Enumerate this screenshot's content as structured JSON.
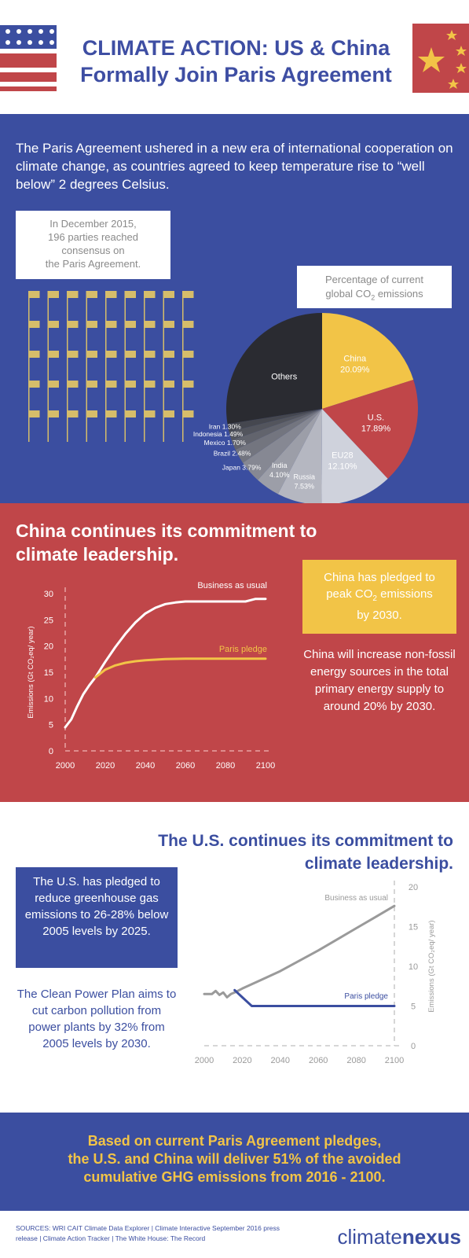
{
  "header": {
    "title_line1": "CLIMATE ACTION: US & China",
    "title_line2": "Formally Join Paris Agreement",
    "colors": {
      "blue": "#3e4ea3",
      "red": "#c04649",
      "yellow": "#f2c447"
    }
  },
  "intro": {
    "text": "The Paris Agreement ushered in a new era of international cooperation on climate change, as countries agreed to keep temperature rise to “well below” 2 degrees Celsius."
  },
  "parties": {
    "line1": "In December 2015,",
    "line2": "196 parties reached",
    "line3": "consensus on",
    "line4": "the Paris Agreement."
  },
  "chart_data": [
    {
      "type": "pie",
      "title_line1": "Percentage of current",
      "title_line2_prefix": "global CO",
      "title_line2_sub": "2",
      "title_line2_suffix": " emissions",
      "slices": [
        {
          "label": "China",
          "value": 20.09,
          "display": "China\n20.09%",
          "color": "#f2c447"
        },
        {
          "label": "U.S.",
          "value": 17.89,
          "display": "U.S.\n17.89%",
          "color": "#c04649"
        },
        {
          "label": "EU28",
          "value": 12.1,
          "display": "EU28\n12.10%",
          "color": "#cfd2dc"
        },
        {
          "label": "Russia",
          "value": 7.53,
          "display": "Russia\n7.53%",
          "color": "#b5b7c1"
        },
        {
          "label": "India",
          "value": 4.1,
          "display": "India\n4.10%",
          "color": "#9c9ea8"
        },
        {
          "label": "Japan",
          "value": 3.79,
          "display": "Japan 3.79%",
          "color": "#868893"
        },
        {
          "label": "Brazil",
          "value": 2.48,
          "display": "Brazil 2.48%",
          "color": "#73757f"
        },
        {
          "label": "Mexico",
          "value": 1.7,
          "display": "Mexico 1.70%",
          "color": "#62646d"
        },
        {
          "label": "Indonesia",
          "value": 1.49,
          "display": "Indonesia 1.49%",
          "color": "#53555d"
        },
        {
          "label": "Iran",
          "value": 1.3,
          "display": "Iran 1.30%",
          "color": "#45474f"
        },
        {
          "label": "Others",
          "value": 27.53,
          "display": "Others",
          "color": "#2a2b31"
        }
      ]
    },
    {
      "type": "line",
      "xlim": [
        2000,
        2100
      ],
      "ylim": [
        0,
        30
      ],
      "xticks": [
        2000,
        2020,
        2040,
        2060,
        2080,
        2100
      ],
      "yticks": [
        0,
        5,
        10,
        15,
        20,
        25,
        30
      ],
      "ylabel": "Emissions (Gt CO₂eq/ year)",
      "series": [
        {
          "name": "Business as usual",
          "color": "#ffffff",
          "x": [
            2000,
            2003,
            2006,
            2009,
            2012,
            2015,
            2020,
            2025,
            2030,
            2035,
            2040,
            2045,
            2050,
            2055,
            2060,
            2070,
            2080,
            2090,
            2095,
            2100
          ],
          "y": [
            4.5,
            6.0,
            8.5,
            10.8,
            12.5,
            14.0,
            17.0,
            19.8,
            22.3,
            24.5,
            26.2,
            27.3,
            28.0,
            28.3,
            28.5,
            28.5,
            28.5,
            28.5,
            29.0,
            29.0
          ]
        },
        {
          "name": "Paris pledge",
          "color": "#f2c447",
          "x": [
            2015,
            2020,
            2025,
            2030,
            2035,
            2040,
            2050,
            2060,
            2070,
            2080,
            2090,
            2100
          ],
          "y": [
            14.0,
            15.5,
            16.3,
            16.8,
            17.1,
            17.3,
            17.5,
            17.6,
            17.6,
            17.6,
            17.6,
            17.6
          ]
        }
      ]
    },
    {
      "type": "line",
      "xlim": [
        2000,
        2100
      ],
      "ylim": [
        0,
        20
      ],
      "xticks": [
        2000,
        2020,
        2040,
        2060,
        2080,
        2100
      ],
      "yticks": [
        0,
        5,
        10,
        15,
        20
      ],
      "ylabel": "Emissions (Gt CO₂eq/ year)",
      "series": [
        {
          "name": "Business as usual",
          "color": "#9a9a9a",
          "x": [
            2000,
            2004,
            2006,
            2008,
            2010,
            2012,
            2014,
            2016,
            2020,
            2030,
            2040,
            2050,
            2060,
            2070,
            2080,
            2090,
            2100
          ],
          "y": [
            6.5,
            6.5,
            6.9,
            6.4,
            6.7,
            6.1,
            6.5,
            6.7,
            7.2,
            8.3,
            9.4,
            10.7,
            12.0,
            13.4,
            14.8,
            16.2,
            17.6
          ]
        },
        {
          "name": "Paris pledge",
          "color": "#3b4ea0",
          "x": [
            2016,
            2020,
            2025,
            2100
          ],
          "y": [
            7.0,
            6.1,
            5.0,
            5.0
          ]
        }
      ]
    }
  ],
  "china": {
    "heading": "China continues its commitment to climate leadership.",
    "pledge_line1": "China has pledged to",
    "pledge_line2_prefix": "peak CO",
    "pledge_line2_sub": "2",
    "pledge_line2_suffix": " emissions",
    "pledge_line3": "by 2030.",
    "note": "China will increase non-fossil energy sources in the total primary energy supply to around 20% by 2030."
  },
  "us": {
    "heading": "The U.S. continues its commitment to climate leadership.",
    "pledge": "The U.S. has pledged to reduce greenhouse gas emissions to 26-28% below 2005 levels by 2025.",
    "note": "The Clean Power Plan aims to cut carbon pollution from power plants by 32% from 2005 levels by 2030."
  },
  "conclusion": {
    "line1": "Based on current Paris Agreement pledges,",
    "line2": "the U.S. and China will deliver 51% of the avoided",
    "line3": "cumulative GHG emissions from 2016 - 2100."
  },
  "footer": {
    "sources": "SOURCES: WRI CAIT Climate Data Explorer | Climate Interactive September 2016 press release | Climate Action Tracker | The White House: The Record",
    "logo_part1": "climate",
    "logo_part2": "nexus"
  }
}
